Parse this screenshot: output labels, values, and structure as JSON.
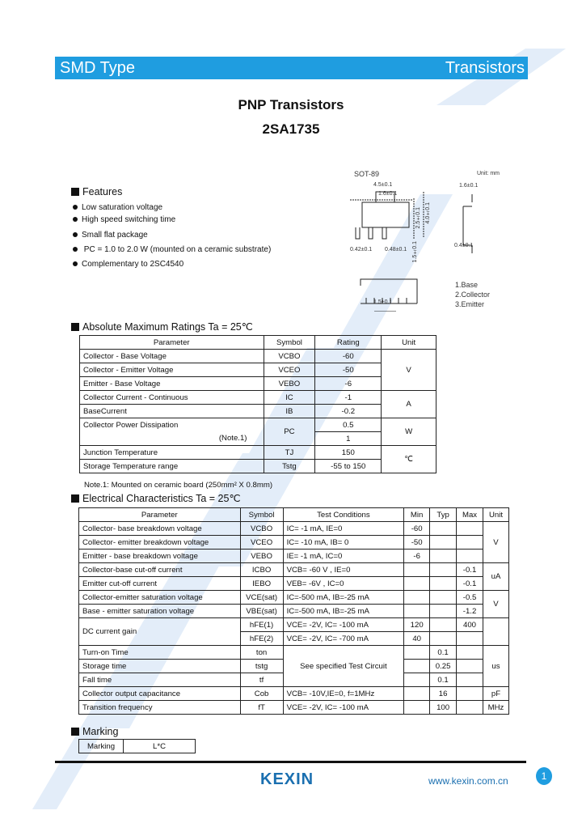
{
  "header": {
    "left": "SMD Type",
    "right": "Transistors"
  },
  "title": "PNP  Transistors",
  "part": "2SA1735",
  "features": {
    "heading": "Features",
    "items": [
      "Low saturation voltage",
      "High speed switching time",
      "Small flat package",
      " PC = 1.0 to 2.0 W (mounted on a ceramic substrate)",
      "Complementary to 2SC4540"
    ]
  },
  "package": {
    "name": "SOT-89",
    "units": "Unit: mm",
    "dims": [
      "4.5±0.1",
      "1.6±0.1",
      "2.5±0.1",
      "4.0±0.1",
      "0.42±0.1",
      "0.48±0.1",
      "1.5±0.1",
      "1.6±0.1",
      "0.4±0.1",
      "1.5±0.1"
    ],
    "pins": [
      "1.Base",
      "2.Collector",
      "3.Emitter"
    ],
    "pin_numbers": [
      "1",
      "2",
      "3"
    ]
  },
  "abs": {
    "heading": "Absolute Maximum Ratings Ta = 25℃",
    "headers": [
      "Parameter",
      "Symbol",
      "Rating",
      "Unit"
    ],
    "rows": [
      [
        "Collector - Base Voltage",
        "VCBO",
        "-60"
      ],
      [
        "Collector - Emitter Voltage",
        "VCEO",
        "-50"
      ],
      [
        "Emitter - Base Voltage",
        "VEBO",
        "-6"
      ],
      [
        "Collector Current  - Continuous",
        "IC",
        "-1"
      ],
      [
        "BaseCurrent",
        "IB",
        "-0.2"
      ],
      [
        "Collector Power Dissipation",
        "PC",
        "0.5"
      ],
      [
        "(Note.1)",
        "",
        "1"
      ],
      [
        "Junction Temperature",
        "TJ",
        "150"
      ],
      [
        "Storage Temperature range",
        "Tstg",
        "-55 to 150"
      ]
    ],
    "units": [
      "V",
      "A",
      "W",
      "℃"
    ],
    "note": "Note.1: Mounted on ceramic board (250mm² X  0.8mm)"
  },
  "elec": {
    "heading": "Electrical Characteristics Ta = 25℃",
    "headers": [
      "Parameter",
      "Symbol",
      "Test Conditions",
      "Min",
      "Typ",
      "Max",
      "Unit"
    ],
    "rows": [
      [
        "Collector- base breakdown voltage",
        "VCBO",
        "IC= -1 mA,  IE=0",
        "-60",
        "",
        ""
      ],
      [
        "Collector- emitter breakdown voltage",
        "VCEO",
        "IC= -10 mA,  IB= 0",
        "-50",
        "",
        ""
      ],
      [
        "Emitter - base breakdown voltage",
        "VEBO",
        "IE= -1 mA,   IC=0",
        "-6",
        "",
        ""
      ],
      [
        "Collector-base cut-off current",
        "ICBO",
        "VCB= -60 V , IE=0",
        "",
        "",
        "-0.1"
      ],
      [
        "Emitter cut-off current",
        "IEBO",
        "VEB= -6V , IC=0",
        "",
        "",
        "-0.1"
      ],
      [
        "Collector-emitter saturation voltage",
        "VCE(sat)",
        "IC=-500 mA, IB=-25 mA",
        "",
        "",
        "-0.5"
      ],
      [
        "Base - emitter saturation voltage",
        "VBE(sat)",
        "IC=-500 mA, IB=-25 mA",
        "",
        "",
        "-1.2"
      ],
      [
        "DC current gain",
        "hFE(1)",
        "VCE= -2V, IC= -100 mA",
        "120",
        "",
        "400"
      ],
      [
        "",
        "hFE(2)",
        "VCE= -2V, IC= -700 mA",
        "40",
        "",
        ""
      ],
      [
        "Turn-on Time",
        "ton",
        "See specified Test Circuit",
        "",
        "0.1",
        ""
      ],
      [
        "Storage time",
        "tstg",
        "",
        "",
        "0.25",
        ""
      ],
      [
        "Fall  time",
        "tf",
        "",
        "",
        "0.1",
        ""
      ],
      [
        "Collector output  capacitance",
        "Cob",
        "VCB= -10V,IE=0, f=1MHz",
        "",
        "16",
        ""
      ],
      [
        "Transition frequency",
        "fT",
        "VCE= -2V, IC= -100 mA",
        "",
        "100",
        ""
      ]
    ],
    "units": [
      "V",
      "uA",
      "V",
      "us",
      "pF",
      "MHz"
    ]
  },
  "marking": {
    "heading": "Marking",
    "label": "Marking",
    "value": "L*C"
  },
  "footer": {
    "logo": "KEXIN",
    "url": "www.kexin.com.cn",
    "page": "1"
  },
  "colors": {
    "accent": "#1f9de0",
    "watermark": "#dbe8f7"
  }
}
